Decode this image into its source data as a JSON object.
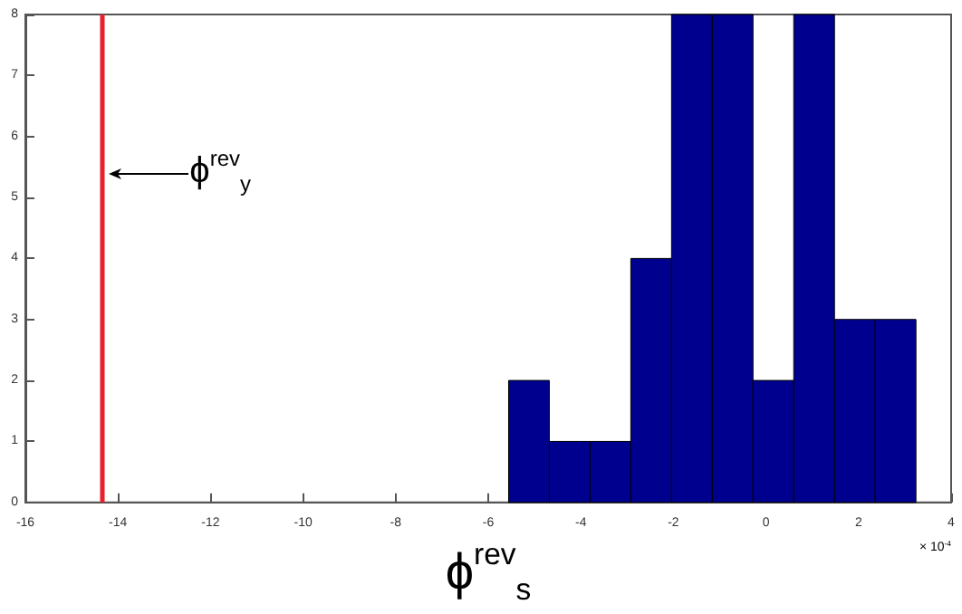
{
  "chart_data": {
    "type": "histogram",
    "xlabel": "ϕ$^{rev}$$_{s}$",
    "bins": [
      -5.56,
      -4.68,
      -3.8,
      -2.92,
      -2.04,
      -1.16,
      -0.28,
      0.6,
      1.48,
      2.36,
      3.24
    ],
    "values": [
      2,
      1,
      1,
      4,
      8,
      8,
      2,
      8,
      3,
      3
    ],
    "color": "#00008f",
    "xlim": [
      -16,
      4
    ],
    "xticks": [
      -16,
      -14,
      -12,
      -10,
      -8,
      -6,
      -4,
      -2,
      0,
      2,
      4
    ],
    "ylim": [
      0,
      8
    ],
    "yticks": [
      0,
      1,
      2,
      3,
      4,
      5,
      6,
      7,
      8
    ],
    "ref_lines": [
      {
        "axis": "x",
        "value": -14.33,
        "label": "ϕ$^{rev}$$_{y}$",
        "color": "#e8202a"
      }
    ],
    "annotations": [
      "× 10$^{-4}$"
    ],
    "grid": false
  }
}
